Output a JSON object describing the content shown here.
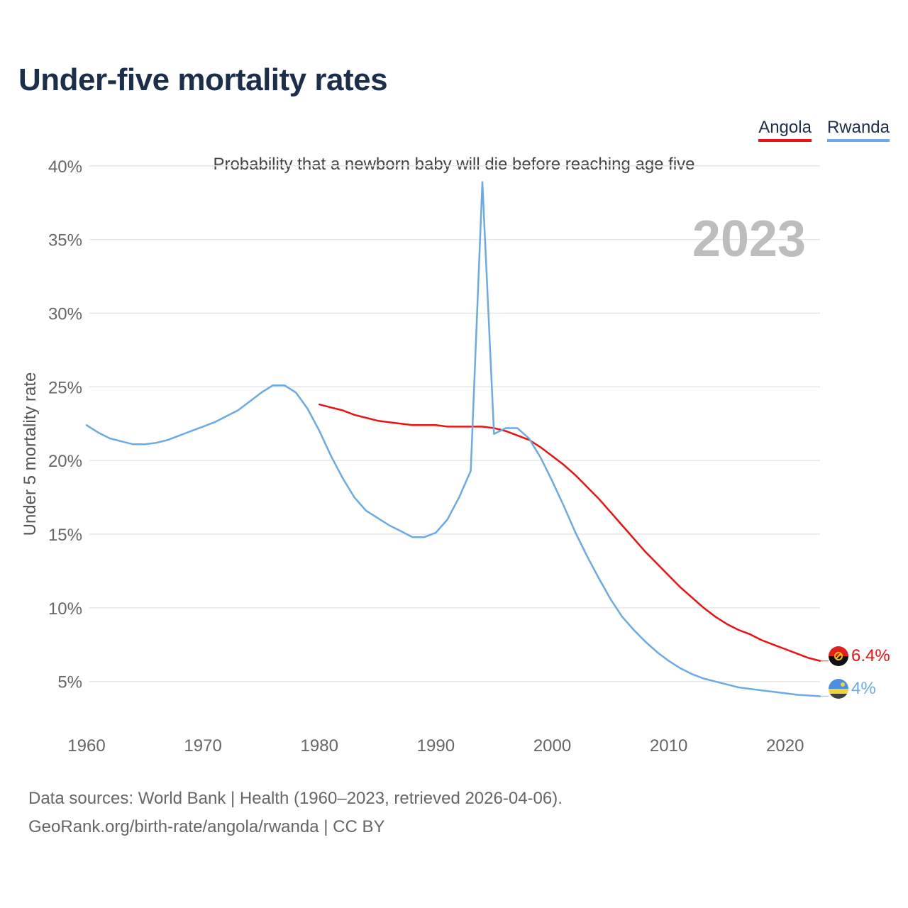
{
  "title": "Under-five mortality rates",
  "subtitle": "Probability that a newborn baby will die before reaching age five",
  "legend": [
    {
      "label": "Angola",
      "color": "#ee1111"
    },
    {
      "label": "Rwanda",
      "color": "#6aaae8"
    }
  ],
  "year_label": "2023",
  "footer": {
    "line1": "Data sources: World Bank | Health (1960–2023, retrieved 2026-04-06).",
    "line2": "GeoRank.org/birth-rate/angola/rwanda | CC BY"
  },
  "chart_data": {
    "type": "line",
    "title": "Under-five mortality rates",
    "xlabel": "",
    "ylabel": "Under 5 mortality rate",
    "xlim": [
      1960,
      2023
    ],
    "ylim": [
      2,
      41
    ],
    "xticks": [
      1960,
      1970,
      1980,
      1990,
      2000,
      2010,
      2020
    ],
    "xtick_labels": [
      "1960",
      "1970",
      "1980",
      "1990",
      "2000",
      "2010",
      "2020"
    ],
    "yticks": [
      5,
      10,
      15,
      20,
      25,
      30,
      35,
      40
    ],
    "ytick_labels": [
      "5%",
      "10%",
      "15%",
      "20%",
      "25%",
      "30%",
      "35%",
      "40%"
    ],
    "grid": true,
    "series": [
      {
        "name": "Angola",
        "color": "#ee1111",
        "end_label": "6.4%",
        "x": [
          1980,
          1981,
          1982,
          1983,
          1984,
          1985,
          1986,
          1987,
          1988,
          1989,
          1990,
          1991,
          1992,
          1993,
          1994,
          1995,
          1996,
          1997,
          1998,
          1999,
          2000,
          2001,
          2002,
          2003,
          2004,
          2005,
          2006,
          2007,
          2008,
          2009,
          2010,
          2011,
          2012,
          2013,
          2014,
          2015,
          2016,
          2017,
          2018,
          2019,
          2020,
          2021,
          2022,
          2023
        ],
        "y": [
          23.8,
          23.6,
          23.4,
          23.1,
          22.9,
          22.7,
          22.6,
          22.5,
          22.4,
          22.4,
          22.4,
          22.3,
          22.3,
          22.3,
          22.3,
          22.2,
          22.0,
          21.7,
          21.4,
          20.9,
          20.3,
          19.7,
          19.0,
          18.2,
          17.4,
          16.5,
          15.6,
          14.7,
          13.8,
          13.0,
          12.2,
          11.4,
          10.7,
          10.0,
          9.4,
          8.9,
          8.5,
          8.2,
          7.8,
          7.5,
          7.2,
          6.9,
          6.6,
          6.4
        ]
      },
      {
        "name": "Rwanda",
        "color": "#6aaae8",
        "end_label": "4%",
        "x": [
          1960,
          1961,
          1962,
          1963,
          1964,
          1965,
          1966,
          1967,
          1968,
          1969,
          1970,
          1971,
          1972,
          1973,
          1974,
          1975,
          1976,
          1977,
          1978,
          1979,
          1980,
          1981,
          1982,
          1983,
          1984,
          1985,
          1986,
          1987,
          1988,
          1989,
          1990,
          1991,
          1992,
          1993,
          1994,
          1995,
          1996,
          1997,
          1998,
          1999,
          2000,
          2001,
          2002,
          2003,
          2004,
          2005,
          2006,
          2007,
          2008,
          2009,
          2010,
          2011,
          2012,
          2013,
          2014,
          2015,
          2016,
          2017,
          2018,
          2019,
          2020,
          2021,
          2022,
          2023
        ],
        "y": [
          22.4,
          21.9,
          21.5,
          21.3,
          21.1,
          21.1,
          21.2,
          21.4,
          21.7,
          22.0,
          22.3,
          22.6,
          23.0,
          23.4,
          24.0,
          24.6,
          25.1,
          25.1,
          24.6,
          23.5,
          22.0,
          20.3,
          18.8,
          17.5,
          16.6,
          16.1,
          15.6,
          15.2,
          14.8,
          14.8,
          15.1,
          16.0,
          17.5,
          19.3,
          38.9,
          21.8,
          22.2,
          22.2,
          21.5,
          20.2,
          18.6,
          16.9,
          15.1,
          13.5,
          12.0,
          10.6,
          9.4,
          8.5,
          7.7,
          7.0,
          6.4,
          5.9,
          5.5,
          5.2,
          5.0,
          4.8,
          4.6,
          4.5,
          4.4,
          4.3,
          4.2,
          4.1,
          4.05,
          4.0
        ]
      }
    ]
  }
}
